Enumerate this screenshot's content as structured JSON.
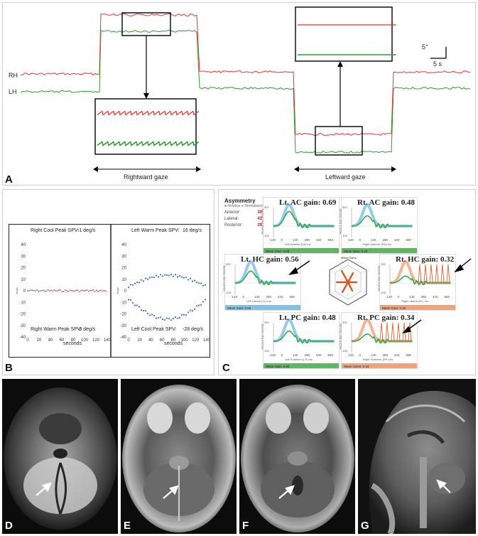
{
  "panelA": {
    "label": "A",
    "rh_label": "RH",
    "lh_label": "LH",
    "scale_vertical": "5°",
    "scale_horizontal": "5 s",
    "rightward_gaze": "Rightward gaze",
    "leftward_gaze": "Leftward gaze",
    "colors": {
      "rh": "#e83030",
      "lh": "#2e9a2e"
    }
  },
  "panelB": {
    "label": "B",
    "xlabel": "seconds",
    "xticks": [
      "0",
      "20",
      "40",
      "60",
      "80",
      "100",
      "120",
      "140"
    ],
    "yticks": [
      "40",
      "30",
      "20",
      "10",
      "0",
      "-10",
      "-20",
      "-30",
      "-40"
    ],
    "left": {
      "top_label": "Right Cool Peak SPV:",
      "top_value": "-1  deg/s",
      "bottom_label": "Right Warm Peak SPV:",
      "bottom_value": "-3  deg/s",
      "y_axis": "deg/s"
    },
    "right": {
      "top_label": "Left Warm Peak SPV:",
      "top_value": "16  deg/s",
      "bottom_label": "Left Cool Peak SPV:",
      "bottom_value": "-28  deg/s",
      "y_axis": "deg/s"
    }
  },
  "panelC": {
    "label": "C",
    "asymmetry_title": "Asymmetry",
    "legend_relative": "Relative",
    "legend_normalized": "Normalized Relative",
    "asym_rows": [
      {
        "name": "Anterior:",
        "value": "30 %"
      },
      {
        "name": "Lateral:",
        "value": "43 %"
      },
      {
        "name": "Posterior:",
        "value": "29 %"
      }
    ],
    "ylabel": "Head & Eye Velocity",
    "xticks": [
      "-140",
      "0",
      "140",
      "280",
      "420",
      "560"
    ],
    "y_top": "300",
    "y_bottom": "-100",
    "plots": [
      {
        "title": "Lt. AC gain: 0.69",
        "axis": "Left Anterior (LA) ms",
        "mean": "Mean Gain: 0.69",
        "color": "green"
      },
      {
        "title": "Rt. AC gain: 0.48",
        "axis": "Right Anterior (RA) ms",
        "mean": "Mean Gain: 0.48",
        "color": "green"
      },
      {
        "title": "Lt. HC gain: 0.56",
        "axis": "Left Lateral (LL) ms",
        "mean": "Mean Gain: 0.56",
        "color": "blue"
      },
      {
        "title": "Rt. HC gain: 0.32",
        "axis": "Right Lateral (RL) ms",
        "mean": "Mean Gain: 0.32",
        "color": "orange"
      },
      {
        "title": "Lt. PC gain: 0.48",
        "axis": "Left Posterior (LP) ms",
        "mean": "Mean Gain: 0.48",
        "color": "green"
      },
      {
        "title": "Rt. PC gain: 0.34",
        "axis": "Right Posterior (RP) ms",
        "mean": "Mean Gains: 0.34",
        "color": "orange"
      }
    ],
    "center_title": "Mean Gains"
  },
  "mri": {
    "labels": [
      "D",
      "E",
      "F",
      "G"
    ]
  }
}
